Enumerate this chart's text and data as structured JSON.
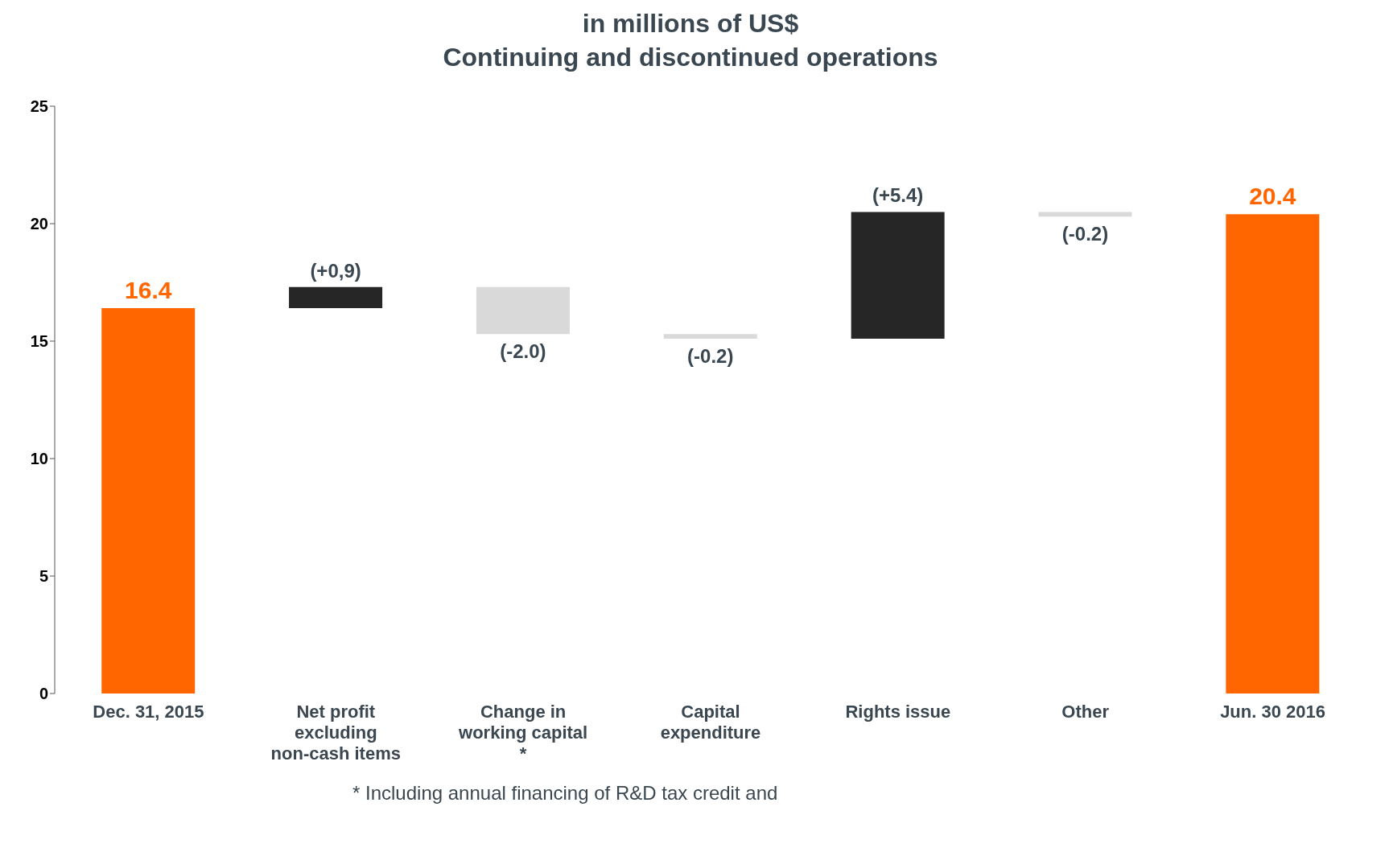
{
  "chart_data": {
    "type": "bar",
    "title": "in millions of US$",
    "subtitle": "Continuing and discontinued operations",
    "categories": [
      "Dec. 31, 2015",
      "Net profit excluding non-cash items",
      "Change in working capital *",
      "Capital expenditure",
      "Rights issue",
      "Other",
      "Jun. 30 2016"
    ],
    "values": [
      16.4,
      0.9,
      -2.0,
      -0.2,
      5.4,
      -0.2,
      20.4
    ],
    "base": [
      0,
      16.4,
      17.3,
      15.3,
      15.1,
      20.5,
      0
    ],
    "colors": [
      "#ff6600",
      "#262626",
      "#d9d9d9",
      "#d9d9d9",
      "#262626",
      "#d9d9d9",
      "#ff6600"
    ],
    "value_labels": [
      "16.4",
      "(+0,9)",
      "(-2.0)",
      "(-0.2)",
      "(+5.4)",
      "(-0.2)",
      "20.4"
    ],
    "ylim": [
      0,
      25
    ],
    "yticks": [
      0,
      5,
      10,
      15,
      20,
      25
    ],
    "grid": false,
    "annotations": [
      "* Including annual financing of R&D tax credit and"
    ]
  }
}
